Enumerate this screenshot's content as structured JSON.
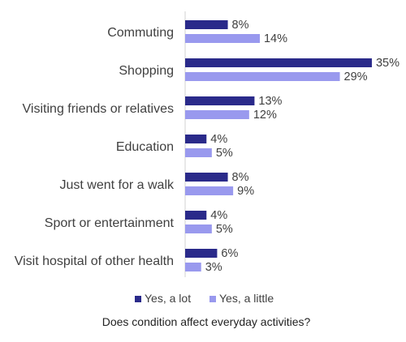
{
  "chart_data": {
    "type": "bar",
    "orientation": "horizontal",
    "categories": [
      "Commuting",
      "Shopping",
      "Visiting friends or relatives",
      "Education",
      "Just went for a walk",
      "Sport or entertainment",
      "Visit hospital of other health"
    ],
    "series": [
      {
        "name": "Yes, a lot",
        "color": "#2a2a8a",
        "values": [
          8,
          35,
          13,
          4,
          8,
          4,
          6
        ]
      },
      {
        "name": "Yes, a little",
        "color": "#9999ee",
        "values": [
          14,
          29,
          12,
          5,
          9,
          5,
          3
        ]
      }
    ],
    "value_suffix": "%",
    "xlim": [
      0,
      35
    ],
    "grid": false,
    "legend_position": "bottom",
    "xlabel": "Does condition affect everyday activities?"
  }
}
